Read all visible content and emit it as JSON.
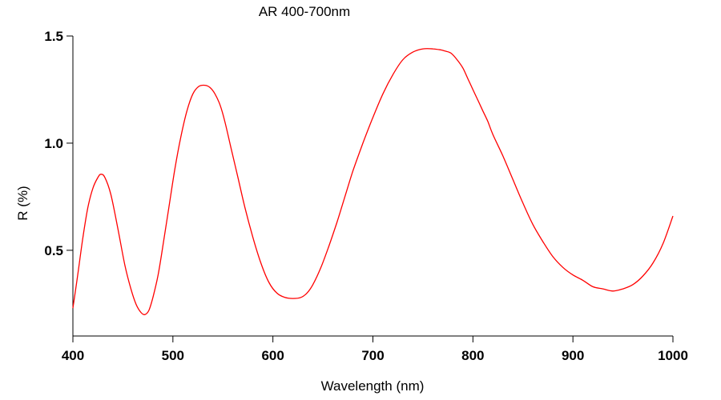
{
  "chart_data": {
    "type": "line",
    "title": "AR 400-700nm",
    "xlabel": "Wavelength (nm)",
    "ylabel": "R (%)",
    "xlim": [
      400,
      1000
    ],
    "ylim": [
      0.1,
      1.5
    ],
    "x_ticks": [
      400,
      500,
      600,
      700,
      800,
      900,
      1000
    ],
    "x_tick_labels": [
      "400",
      "500",
      "600",
      "700",
      "800",
      "900",
      "1000"
    ],
    "y_ticks": [
      0.5,
      1.0,
      1.5
    ],
    "y_tick_labels": [
      "0.5",
      "1.0",
      "1.5"
    ],
    "grid": false,
    "legend": "none",
    "series": [
      {
        "color": "#ff0000",
        "x": [
          400,
          405,
          410,
          415,
          420,
          425,
          428,
          432,
          438,
          445,
          452,
          458,
          463,
          468,
          472,
          476,
          480,
          485,
          490,
          496,
          502,
          508,
          514,
          520,
          526,
          532,
          537,
          542,
          547,
          552,
          558,
          565,
          572,
          580,
          588,
          596,
          604,
          612,
          620,
          628,
          634,
          640,
          648,
          656,
          664,
          672,
          680,
          690,
          700,
          710,
          720,
          730,
          740,
          750,
          760,
          768,
          772,
          778,
          784,
          790,
          795,
          800,
          805,
          810,
          815,
          820,
          830,
          840,
          850,
          860,
          870,
          880,
          890,
          900,
          910,
          920,
          930,
          940,
          950,
          960,
          970,
          980,
          990,
          1000
        ],
        "y": [
          0.23,
          0.39,
          0.56,
          0.7,
          0.79,
          0.84,
          0.855,
          0.84,
          0.76,
          0.6,
          0.43,
          0.32,
          0.25,
          0.21,
          0.2,
          0.22,
          0.28,
          0.38,
          0.52,
          0.7,
          0.88,
          1.03,
          1.15,
          1.23,
          1.265,
          1.27,
          1.26,
          1.23,
          1.18,
          1.1,
          0.98,
          0.84,
          0.7,
          0.56,
          0.44,
          0.35,
          0.3,
          0.28,
          0.275,
          0.28,
          0.3,
          0.34,
          0.42,
          0.52,
          0.63,
          0.75,
          0.87,
          1.0,
          1.12,
          1.23,
          1.32,
          1.39,
          1.425,
          1.44,
          1.44,
          1.435,
          1.43,
          1.42,
          1.39,
          1.35,
          1.3,
          1.25,
          1.2,
          1.15,
          1.1,
          1.04,
          0.94,
          0.83,
          0.72,
          0.62,
          0.54,
          0.47,
          0.42,
          0.385,
          0.36,
          0.33,
          0.32,
          0.31,
          0.32,
          0.34,
          0.38,
          0.44,
          0.53,
          0.66
        ]
      }
    ]
  }
}
